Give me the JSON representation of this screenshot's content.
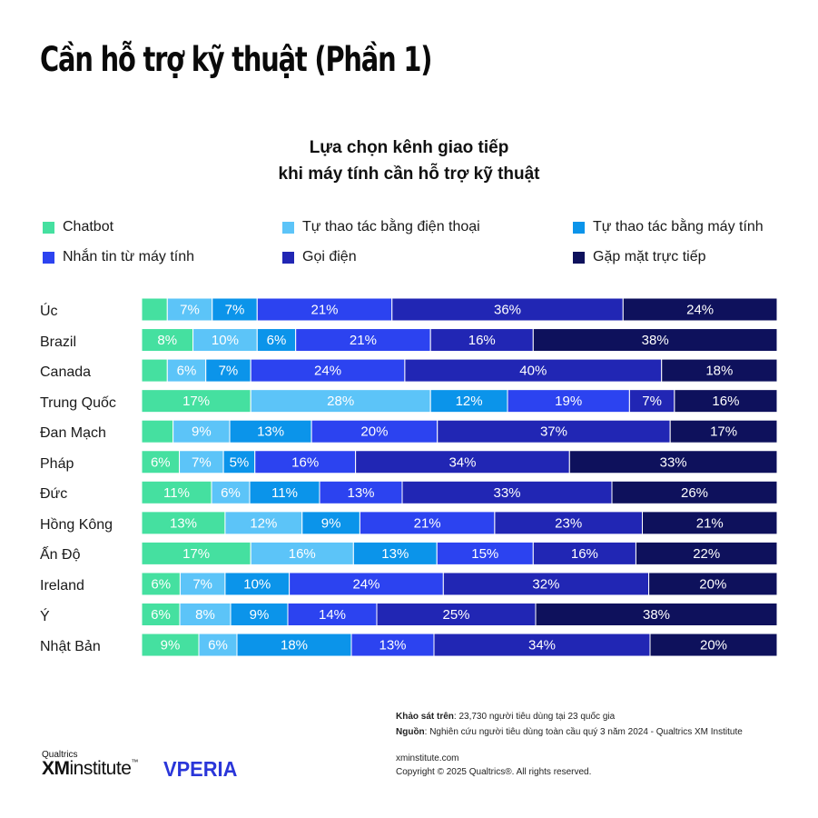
{
  "page": {
    "title": "Cần hỗ trợ kỹ thuật (Phần 1)",
    "survey_label": "Khảo sát trên",
    "survey_text": ": 23,730 người tiêu dùng tại 23 quốc gia",
    "source_label": "Nguồn",
    "source_text": ": Nghiên cứu người tiêu dùng toàn cầu quý 3 năm 2024 - Qualtrics XM Institute",
    "website": "xminstitute.com",
    "copyright": "Copyright © 2025 Qualtrics®. All rights reserved.",
    "logo_small": "Qualtrics",
    "logo_xm": "XM",
    "logo_institute": "institute",
    "logo_tm": "™",
    "logo_partner": "VPERIA"
  },
  "chart_data": {
    "type": "bar",
    "orientation": "horizontal",
    "stacked": true,
    "normalized_percent": true,
    "title_lines": [
      "Lựa chọn kênh giao tiếp",
      "khi máy tính cần hỗ trợ kỹ thuật"
    ],
    "legend_position": "top",
    "grid": false,
    "categories": [
      "Úc",
      "Brazil",
      "Canada",
      "Trung Quốc",
      "Đan Mạch",
      "Pháp",
      "Đức",
      "Hồng Kông",
      "Ấn Độ",
      "Ireland",
      "Ý",
      "Nhật Bản"
    ],
    "series": [
      {
        "name": "Chatbot",
        "color": "#45e0a0",
        "values": [
          4,
          8,
          4,
          17,
          5,
          6,
          11,
          13,
          17,
          6,
          6,
          9
        ]
      },
      {
        "name": "Tự thao tác bằng điện thoại",
        "color": "#5cc4f8",
        "values": [
          7,
          10,
          6,
          28,
          9,
          7,
          6,
          12,
          16,
          7,
          8,
          6
        ]
      },
      {
        "name": "Tự thao tác bằng máy tính",
        "color": "#0b94ea",
        "values": [
          7,
          6,
          7,
          12,
          13,
          5,
          11,
          9,
          13,
          10,
          9,
          18
        ]
      },
      {
        "name": "Nhắn tin từ máy tính",
        "color": "#2c43f0",
        "values": [
          21,
          21,
          24,
          19,
          20,
          16,
          13,
          21,
          15,
          24,
          14,
          13
        ]
      },
      {
        "name": "Gọi điện",
        "color": "#2126b4",
        "values": [
          36,
          16,
          40,
          7,
          37,
          34,
          33,
          23,
          16,
          32,
          25,
          34
        ]
      },
      {
        "name": "Gặp mặt trực tiếp",
        "color": "#0e115c",
        "values": [
          24,
          38,
          18,
          16,
          17,
          33,
          26,
          21,
          22,
          20,
          38,
          20
        ]
      }
    ],
    "hidden_labels": [
      [
        true,
        false,
        false,
        false,
        false,
        false
      ],
      [
        false,
        false,
        false,
        false,
        false,
        false
      ],
      [
        true,
        false,
        false,
        false,
        false,
        false
      ],
      [
        false,
        false,
        false,
        false,
        false,
        false
      ],
      [
        true,
        false,
        false,
        false,
        false,
        false
      ],
      [
        false,
        false,
        false,
        false,
        false,
        false
      ],
      [
        false,
        false,
        false,
        false,
        false,
        false
      ],
      [
        false,
        false,
        false,
        false,
        false,
        false
      ],
      [
        false,
        false,
        false,
        false,
        false,
        false
      ],
      [
        false,
        false,
        false,
        false,
        false,
        false
      ],
      [
        false,
        false,
        false,
        false,
        false,
        false
      ],
      [
        false,
        false,
        false,
        false,
        false,
        false
      ]
    ],
    "value_suffix": "%"
  }
}
